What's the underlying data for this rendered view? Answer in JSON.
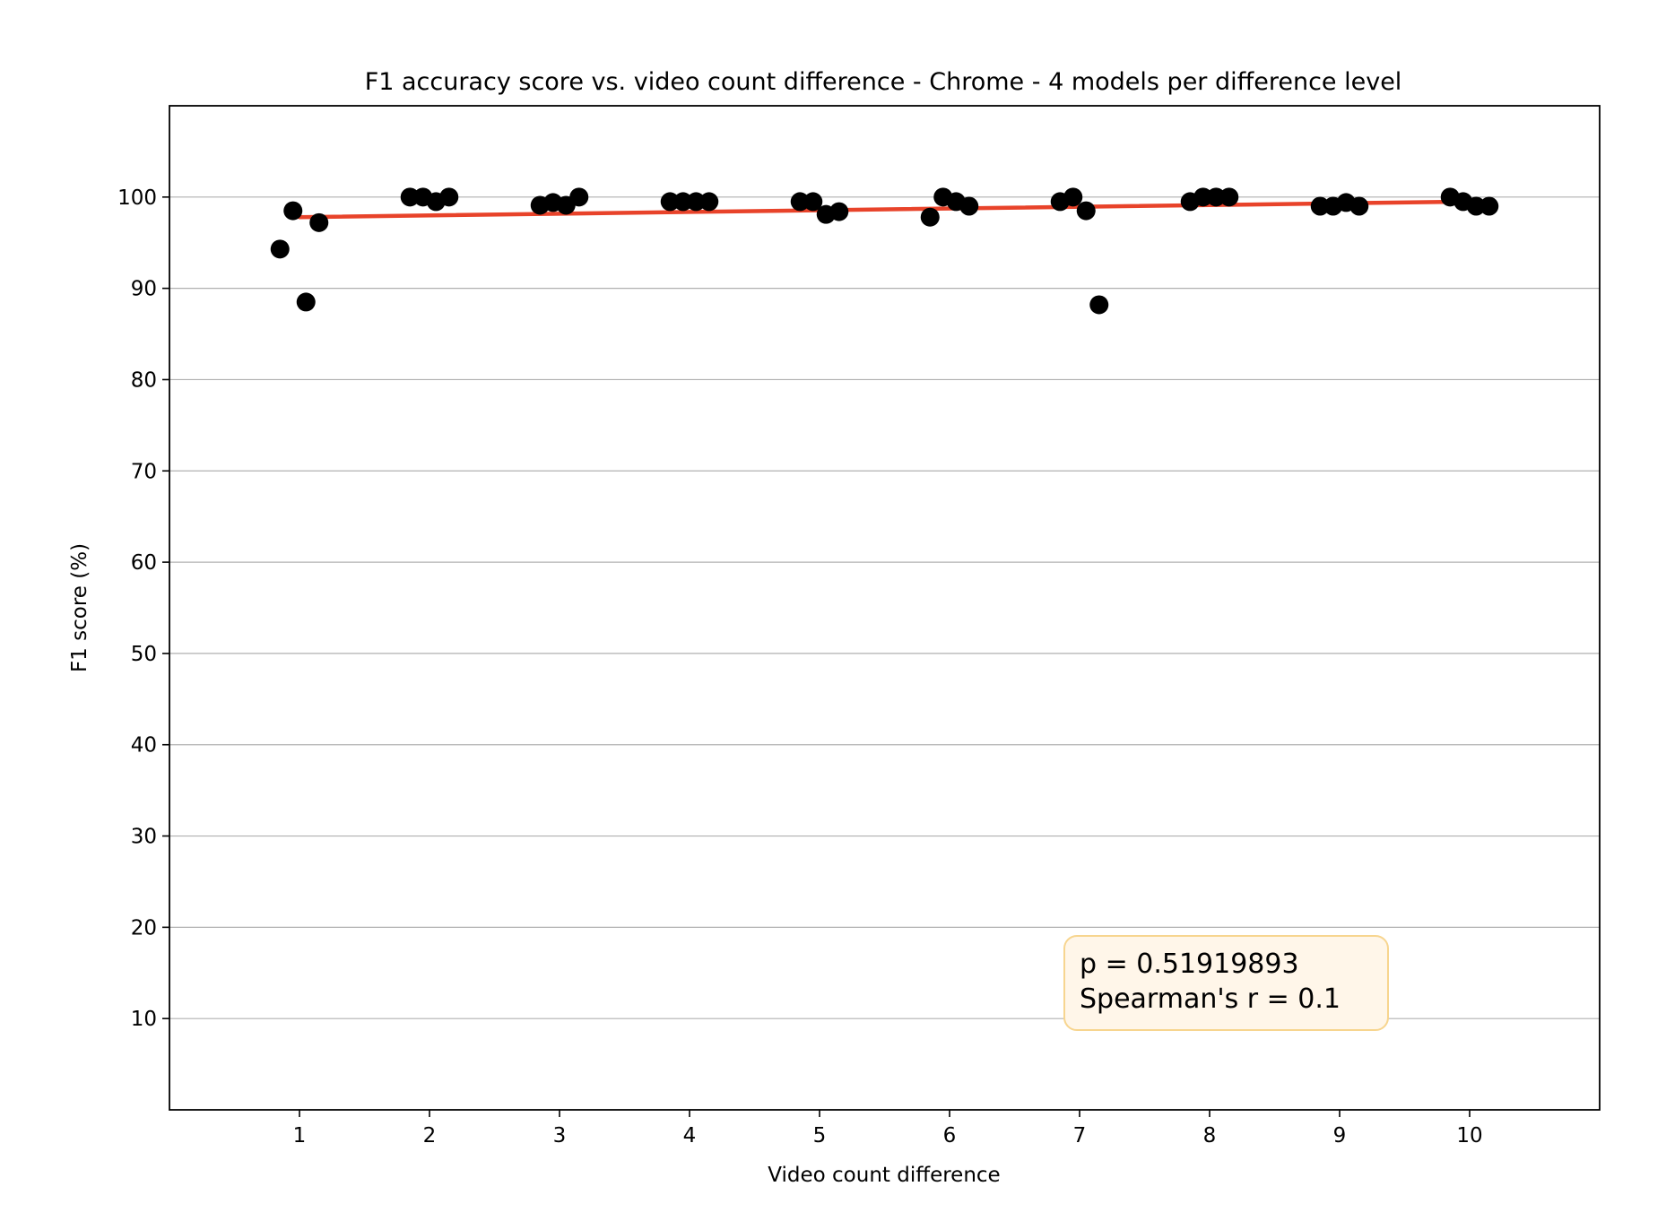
{
  "chart_data": {
    "type": "scatter",
    "title": "F1 accuracy score vs. video count difference - Chrome - 4 models per difference level",
    "xlabel": "Video count difference",
    "ylabel": "F1 score (%)",
    "xlim": [
      0,
      11
    ],
    "ylim": [
      0,
      110
    ],
    "xticks": [
      1,
      2,
      3,
      4,
      5,
      6,
      7,
      8,
      9,
      10
    ],
    "yticks": [
      10,
      20,
      30,
      40,
      50,
      60,
      70,
      80,
      90,
      100
    ],
    "grid": "horizontal",
    "point_color": "#000000",
    "trend_color": "#e8432a",
    "points": [
      {
        "x": 0.85,
        "y": 94.3
      },
      {
        "x": 0.95,
        "y": 98.5
      },
      {
        "x": 1.05,
        "y": 88.5
      },
      {
        "x": 1.15,
        "y": 97.2
      },
      {
        "x": 1.85,
        "y": 100.0
      },
      {
        "x": 1.95,
        "y": 100.0
      },
      {
        "x": 2.05,
        "y": 99.5
      },
      {
        "x": 2.15,
        "y": 100.0
      },
      {
        "x": 2.85,
        "y": 99.1
      },
      {
        "x": 2.95,
        "y": 99.4
      },
      {
        "x": 3.05,
        "y": 99.1
      },
      {
        "x": 3.15,
        "y": 100.0
      },
      {
        "x": 3.85,
        "y": 99.5
      },
      {
        "x": 3.95,
        "y": 99.5
      },
      {
        "x": 4.05,
        "y": 99.5
      },
      {
        "x": 4.15,
        "y": 99.5
      },
      {
        "x": 4.85,
        "y": 99.5
      },
      {
        "x": 4.95,
        "y": 99.5
      },
      {
        "x": 5.05,
        "y": 98.1
      },
      {
        "x": 5.15,
        "y": 98.4
      },
      {
        "x": 5.85,
        "y": 97.8
      },
      {
        "x": 5.95,
        "y": 100.0
      },
      {
        "x": 6.05,
        "y": 99.5
      },
      {
        "x": 6.15,
        "y": 99.0
      },
      {
        "x": 6.85,
        "y": 99.5
      },
      {
        "x": 6.95,
        "y": 100.0
      },
      {
        "x": 7.05,
        "y": 98.5
      },
      {
        "x": 7.15,
        "y": 88.2
      },
      {
        "x": 7.85,
        "y": 99.5
      },
      {
        "x": 7.95,
        "y": 100.0
      },
      {
        "x": 8.05,
        "y": 100.0
      },
      {
        "x": 8.15,
        "y": 100.0
      },
      {
        "x": 8.85,
        "y": 99.0
      },
      {
        "x": 8.95,
        "y": 99.0
      },
      {
        "x": 9.05,
        "y": 99.4
      },
      {
        "x": 9.15,
        "y": 99.0
      },
      {
        "x": 9.85,
        "y": 100.0
      },
      {
        "x": 9.95,
        "y": 99.5
      },
      {
        "x": 10.05,
        "y": 99.0
      },
      {
        "x": 10.15,
        "y": 99.0
      }
    ],
    "trend_line": {
      "x": [
        1,
        10
      ],
      "y": [
        97.8,
        99.5
      ]
    },
    "annotation": {
      "lines": [
        "p = 0.51919893",
        "Spearman's r = 0.1"
      ],
      "placement": "bottom-right"
    }
  }
}
